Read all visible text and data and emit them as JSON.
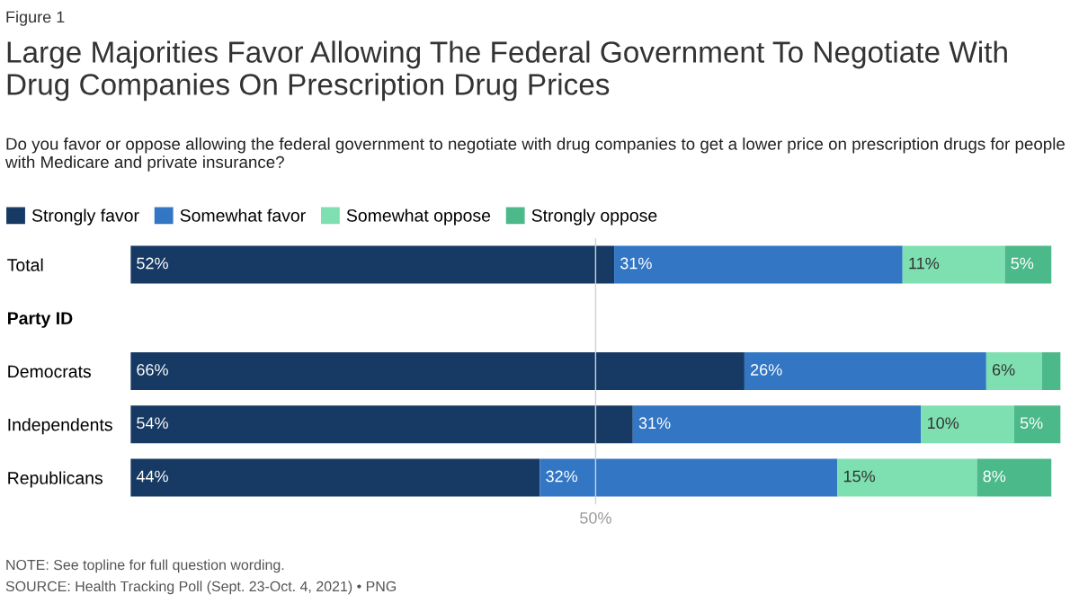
{
  "chart_data": {
    "type": "bar",
    "orientation": "horizontal",
    "stacked": true,
    "title": "Large Majorities Favor Allowing The Federal Government To Negotiate With Drug Companies On Prescription Drug Prices",
    "subtitle": "Do you favor or oppose allowing the federal government to negotiate with drug companies to get a lower price on prescription drugs for people with Medicare and private insurance?",
    "annotations": [
      "Figure 1",
      "NOTE: See topline for full question wording.",
      "SOURCE: Health Tracking Poll (Sept. 23-Oct. 4, 2021) • PNG"
    ],
    "categories": [
      "Total",
      "Party ID",
      "Democrats",
      "Independents",
      "Republicans"
    ],
    "series": [
      {
        "name": "Strongly favor",
        "color": "#173a64",
        "values": [
          52,
          null,
          66,
          54,
          44
        ],
        "value_labels": [
          "52%",
          null,
          "66%",
          "54%",
          "44%"
        ]
      },
      {
        "name": "Somewhat favor",
        "color": "#3276c4",
        "values": [
          31,
          null,
          26,
          31,
          32
        ],
        "value_labels": [
          "31%",
          null,
          "26%",
          "31%",
          "32%"
        ]
      },
      {
        "name": "Somewhat oppose",
        "color": "#7ee0b0",
        "values": [
          11,
          null,
          6,
          10,
          15
        ],
        "value_labels": [
          "11%",
          null,
          "6%",
          "10%",
          "15%"
        ]
      },
      {
        "name": "Strongly oppose",
        "color": "#4cb98a",
        "values": [
          5,
          null,
          2,
          5,
          8
        ],
        "value_labels": [
          "5%",
          null,
          null,
          "5%",
          "8%"
        ]
      }
    ],
    "xlim": [
      0,
      100
    ],
    "xticks": [
      {
        "value": 50,
        "label": "50%"
      }
    ],
    "ref_lines": [
      {
        "axis": "x",
        "value": 50,
        "color": "#c8d3de"
      }
    ],
    "legend": "top left",
    "grid": false
  }
}
